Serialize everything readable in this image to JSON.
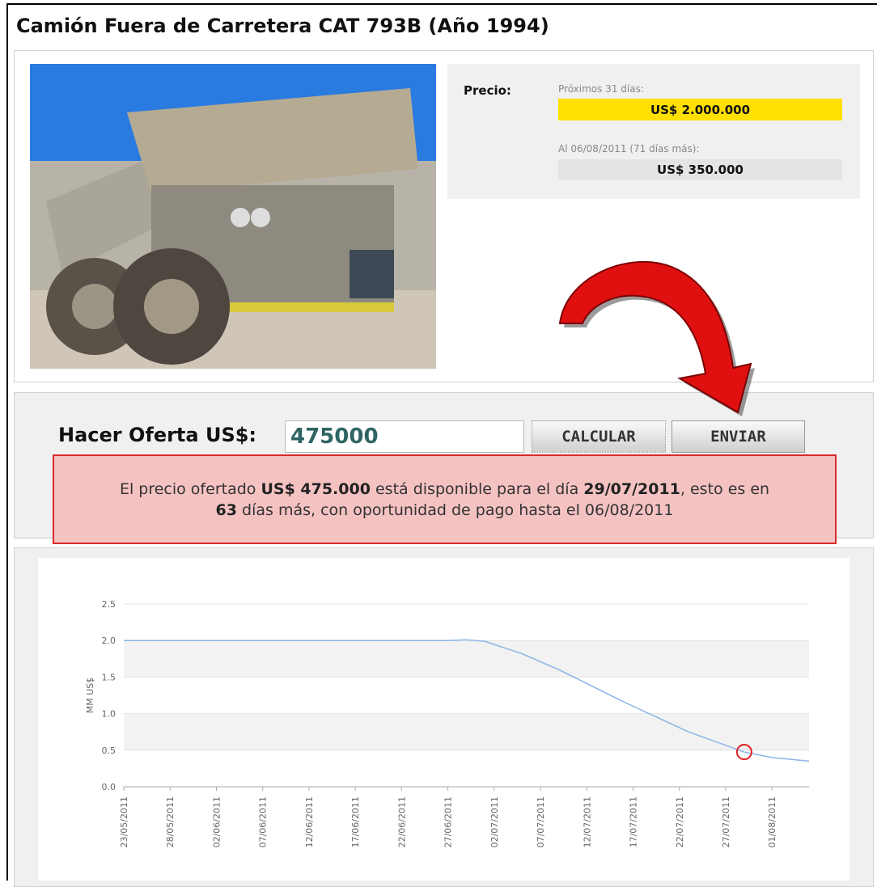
{
  "header": {
    "title": "Camión Fuera de Carretera CAT 793B (Año 1994)"
  },
  "price": {
    "label": "Precio:",
    "next_label": "Próximos 31 días:",
    "next_value": "US$ 2.000.000",
    "later_label": "Al 06/08/2011 (71 días más):",
    "later_value": "US$ 350.000"
  },
  "offer": {
    "label": "Hacer Oferta US$:",
    "input": "475000",
    "buttons": [
      "CALCULAR",
      "ENVIAR"
    ],
    "message": [
      {
        "text": "El precio ofertado ",
        "bold": false
      },
      {
        "text": "US$ 475.000",
        "bold": true
      },
      {
        "text": " está disponible para el día ",
        "bold": false
      },
      {
        "text": "29/07/2011",
        "bold": true
      },
      {
        "text": ", esto es en ",
        "bold": false
      },
      {
        "text": "63",
        "bold": true
      },
      {
        "text": " días más, con oportunidad de pago hasta el 06/08/2011",
        "bold": false
      }
    ]
  },
  "chart_data": {
    "type": "line",
    "y_label": "MM US$",
    "x": [
      "2011-05-23",
      "2011-06-27",
      "2011-06-29",
      "2011-07-01",
      "2011-07-05",
      "2011-07-09",
      "2011-07-16",
      "2011-07-23",
      "2011-07-29",
      "2011-08-01",
      "2011-08-05"
    ],
    "values": [
      2.0,
      2.0,
      2.01,
      1.99,
      1.82,
      1.6,
      1.16,
      0.75,
      0.475,
      0.4,
      0.35
    ],
    "color": "#8ab4e8",
    "marker": {
      "x": "2011-07-29",
      "value": 0.475,
      "color": "#e02020"
    },
    "xlim": [
      "2011-05-23",
      "2011-08-05"
    ],
    "xticks": [
      {
        "value": "2011-05-23",
        "label": "23/05/2011"
      },
      {
        "value": "2011-05-28",
        "label": "28/05/2011"
      },
      {
        "value": "2011-06-02",
        "label": "02/06/2011"
      },
      {
        "value": "2011-06-07",
        "label": "07/06/2011"
      },
      {
        "value": "2011-06-12",
        "label": "12/06/2011"
      },
      {
        "value": "2011-06-17",
        "label": "17/06/2011"
      },
      {
        "value": "2011-06-22",
        "label": "22/06/2011"
      },
      {
        "value": "2011-06-27",
        "label": "27/06/2011"
      },
      {
        "value": "2011-07-02",
        "label": "02/07/2011"
      },
      {
        "value": "2011-07-07",
        "label": "07/07/2011"
      },
      {
        "value": "2011-07-12",
        "label": "12/07/2011"
      },
      {
        "value": "2011-07-17",
        "label": "17/07/2011"
      },
      {
        "value": "2011-07-22",
        "label": "22/07/2011"
      },
      {
        "value": "2011-07-27",
        "label": "27/07/2011"
      },
      {
        "value": "2011-08-01",
        "label": "01/08/2011"
      }
    ],
    "ylim": [
      0,
      2.5
    ],
    "yticks": [
      {
        "value": 0,
        "label": "0.0"
      },
      0.5,
      {
        "value": 1,
        "label": "1.0"
      },
      1.5,
      {
        "value": 2,
        "label": "2.0"
      },
      2.5
    ],
    "grid": true,
    "banded": true
  }
}
